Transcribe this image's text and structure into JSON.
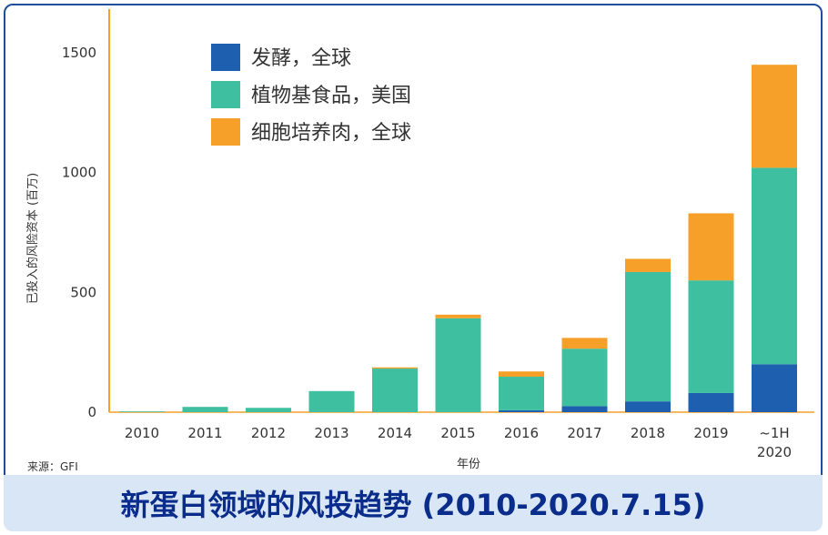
{
  "chart_data": {
    "type": "bar",
    "stacked": true,
    "categories": [
      "2010",
      "2011",
      "2012",
      "2013",
      "2014",
      "2015",
      "2016",
      "2017",
      "2018",
      "2019",
      "~1H\n2020"
    ],
    "series": [
      {
        "name": "发酵，全球",
        "color": "#1f5fb0",
        "values": [
          0,
          0,
          0,
          0,
          0,
          0,
          8,
          25,
          45,
          80,
          200
        ]
      },
      {
        "name": "植物基食品，美国",
        "color": "#3dbfa0",
        "values": [
          3,
          22,
          18,
          88,
          182,
          392,
          140,
          240,
          540,
          470,
          820
        ]
      },
      {
        "name": "细胞培养肉，全球",
        "color": "#f6a02a",
        "values": [
          0,
          0,
          0,
          0,
          5,
          15,
          22,
          45,
          55,
          280,
          430
        ]
      }
    ],
    "xlabel": "年份",
    "ylabel": "已投入的风险资本 (百万)",
    "ylim": [
      0,
      1500
    ],
    "yticks": [
      0,
      500,
      1000,
      1500
    ],
    "legend_position": "top-left",
    "grid": false
  },
  "source_note": "来源：GFI",
  "banner_title": "新蛋白领域的风投趋势 (2010-2020.7.15)"
}
